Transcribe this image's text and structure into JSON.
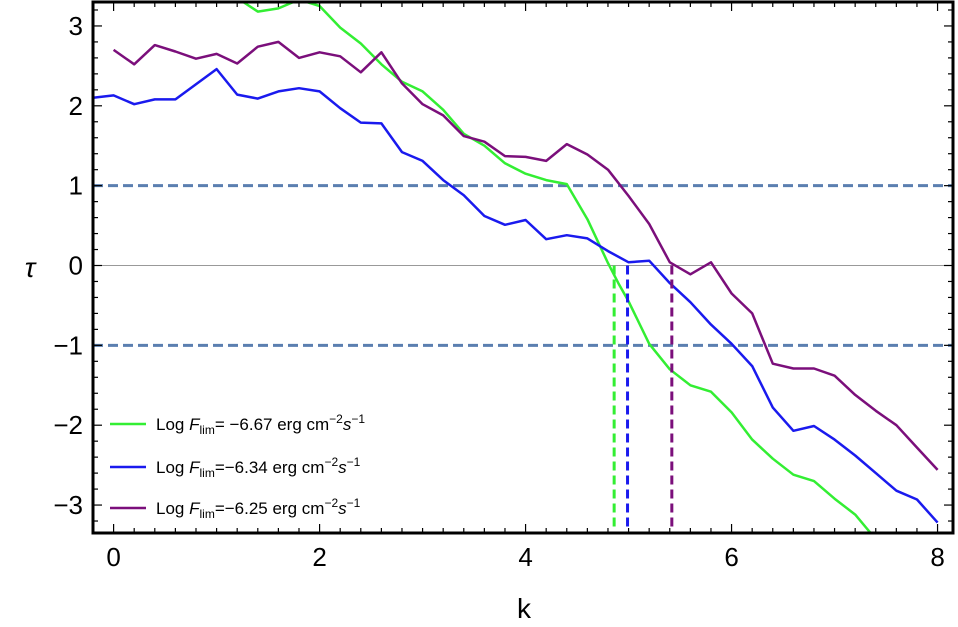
{
  "chart_data": {
    "type": "line",
    "xlabel": "k",
    "ylabel": "τ",
    "xlim": [
      -0.2,
      8.15
    ],
    "ylim": [
      -3.35,
      3.3
    ],
    "xticks": [
      0,
      2,
      4,
      6,
      8
    ],
    "yticks": [
      -3,
      -2,
      -1,
      0,
      1,
      2,
      3
    ],
    "xtick_labels": [
      "0",
      "2",
      "4",
      "6",
      "8"
    ],
    "ytick_labels": [
      "−3",
      "−2",
      "−1",
      "0",
      "1",
      "2",
      "3"
    ],
    "reference_lines": [
      {
        "y": 1,
        "color": "#5b7fb0",
        "style": "dashed"
      },
      {
        "y": -1,
        "color": "#5b7fb0",
        "style": "dashed"
      },
      {
        "y": 0,
        "color": "#999999",
        "style": "solid"
      }
    ],
    "series": [
      {
        "name_prefix": "Log ",
        "name_sym": "F",
        "name_sub": "lim",
        "name_mid": "= −6.67 erg cm",
        "name_exp1": "−2",
        "name_s": "s",
        "name_exp2": "−1",
        "color": "#33ee33",
        "x": [
          0.8,
          1.0,
          1.2,
          1.4,
          1.6,
          1.8,
          2.0,
          2.2,
          2.4,
          2.6,
          2.8,
          3.0,
          3.2,
          3.4,
          3.6,
          3.8,
          4.0,
          4.2,
          4.4,
          4.6,
          4.8,
          4.9,
          5.0,
          5.2,
          5.4,
          5.6,
          5.8,
          6.0,
          6.2,
          6.4,
          6.6,
          6.8,
          7.0,
          7.2,
          7.35
        ],
        "y": [
          3.6,
          3.55,
          3.35,
          3.18,
          3.22,
          3.33,
          3.25,
          2.98,
          2.78,
          2.52,
          2.3,
          2.18,
          1.95,
          1.65,
          1.5,
          1.28,
          1.15,
          1.07,
          1.02,
          0.58,
          0.03,
          -0.22,
          -0.45,
          -0.98,
          -1.3,
          -1.5,
          -1.58,
          -1.84,
          -2.18,
          -2.42,
          -2.62,
          -2.7,
          -2.92,
          -3.12,
          -3.35
        ],
        "dropline_x": 4.86
      },
      {
        "name_prefix": "Log ",
        "name_sym": "F",
        "name_sub": "lim",
        "name_mid": "=−6.34 erg cm",
        "name_exp1": "−2",
        "name_s": "s",
        "name_exp2": "−1",
        "color": "#1a1aee",
        "x": [
          -0.2,
          0.0,
          0.2,
          0.4,
          0.6,
          0.8,
          1.0,
          1.2,
          1.4,
          1.6,
          1.8,
          2.0,
          2.2,
          2.4,
          2.6,
          2.8,
          3.0,
          3.2,
          3.4,
          3.6,
          3.8,
          4.0,
          4.2,
          4.4,
          4.6,
          4.8,
          5.0,
          5.2,
          5.4,
          5.6,
          5.8,
          6.0,
          6.2,
          6.4,
          6.6,
          6.8,
          7.0,
          7.2,
          7.4,
          7.6,
          7.8,
          8.0
        ],
        "y": [
          2.1,
          2.13,
          2.02,
          2.08,
          2.08,
          2.27,
          2.46,
          2.14,
          2.09,
          2.18,
          2.22,
          2.18,
          1.97,
          1.79,
          1.78,
          1.42,
          1.31,
          1.07,
          0.88,
          0.62,
          0.51,
          0.57,
          0.33,
          0.38,
          0.34,
          0.18,
          0.04,
          0.06,
          -0.22,
          -0.46,
          -0.74,
          -0.98,
          -1.26,
          -1.78,
          -2.07,
          -2.01,
          -2.18,
          -2.38,
          -2.6,
          -2.82,
          -2.93,
          -3.22
        ],
        "dropline_x": 4.99
      },
      {
        "name_prefix": "Log ",
        "name_sym": "F",
        "name_sub": "lim",
        "name_mid": "=−6.25 erg cm",
        "name_exp1": "−2",
        "name_s": "s",
        "name_exp2": "−1",
        "color": "#7b0f7b",
        "x": [
          0.0,
          0.2,
          0.4,
          0.6,
          0.8,
          1.0,
          1.2,
          1.4,
          1.6,
          1.8,
          2.0,
          2.2,
          2.4,
          2.6,
          2.8,
          3.0,
          3.2,
          3.4,
          3.6,
          3.8,
          4.0,
          4.2,
          4.4,
          4.6,
          4.8,
          5.0,
          5.2,
          5.4,
          5.6,
          5.8,
          6.0,
          6.2,
          6.4,
          6.6,
          6.8,
          7.0,
          7.2,
          7.4,
          7.6,
          7.8,
          8.0
        ],
        "y": [
          2.7,
          2.52,
          2.76,
          2.68,
          2.59,
          2.65,
          2.53,
          2.74,
          2.8,
          2.6,
          2.67,
          2.62,
          2.42,
          2.67,
          2.28,
          2.02,
          1.88,
          1.62,
          1.55,
          1.37,
          1.36,
          1.31,
          1.52,
          1.39,
          1.2,
          0.87,
          0.52,
          0.04,
          -0.11,
          0.04,
          -0.35,
          -0.6,
          -1.23,
          -1.29,
          -1.29,
          -1.38,
          -1.62,
          -1.82,
          -2.0,
          -2.28,
          -2.56
        ],
        "dropline_x": 5.42
      }
    ]
  }
}
